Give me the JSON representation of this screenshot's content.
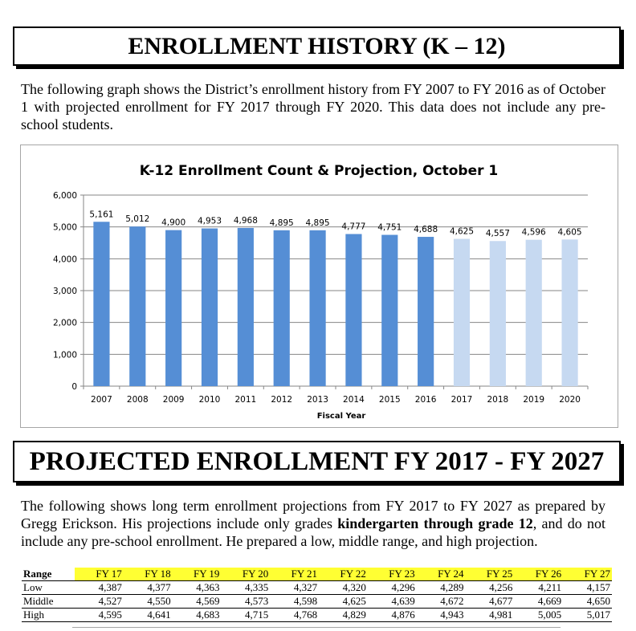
{
  "header1": "ENROLLMENT  HISTORY (K – 12)",
  "intro": "The following graph shows the District’s enrollment history from FY 2007 to FY 2016 as of October 1 with projected enrollment for FY 2017 through FY 2020.  This data does not include any pre-school students.",
  "chart_data": {
    "type": "bar",
    "title": "K-12 Enrollment Count & Projection, October 1",
    "xlabel": "Fiscal Year",
    "ylabel": "",
    "ylim": [
      0,
      6000
    ],
    "yticks": [
      "0",
      "1,000",
      "2,000",
      "3,000",
      "4,000",
      "5,000",
      "6,000"
    ],
    "categories": [
      "2007",
      "2008",
      "2009",
      "2010",
      "2011",
      "2012",
      "2013",
      "2014",
      "2015",
      "2016",
      "2017",
      "2018",
      "2019",
      "2020"
    ],
    "values": [
      5161,
      5012,
      4900,
      4953,
      4968,
      4895,
      4895,
      4777,
      4751,
      4688,
      4625,
      4557,
      4596,
      4605
    ],
    "labels": [
      "5,161",
      "5,012",
      "4,900",
      "4,953",
      "4,968",
      "4,895",
      "4,895",
      "4,777",
      "4,751",
      "4,688",
      "4,625",
      "4,557",
      "4,596",
      "4,605"
    ],
    "projected_from_index": 10,
    "grid": true,
    "colors": {
      "actual": "#558ed5",
      "projected": "#c6d9f1"
    }
  },
  "header2": "PROJECTED  ENROLLMENT  FY 2017 - FY 2027",
  "para2": {
    "before": "The following shows long term enrollment projections from FY 2017 to FY 2027 as prepared by Gregg Erickson.  His projections include only grades ",
    "bold": "kindergarten through grade 12",
    "after": ", and do not include any pre-school enrollment.  He prepared a low, middle range, and high projection."
  },
  "table": {
    "header": [
      "Range",
      "FY 17",
      "FY 18",
      "FY 19",
      "FY 20",
      "FY 21",
      "FY 22",
      "FY 23",
      "FY 24",
      "FY 25",
      "FY 26",
      "FY 27"
    ],
    "rows": [
      [
        "Low",
        "4,387",
        "4,377",
        "4,363",
        "4,335",
        "4,327",
        "4,320",
        "4,296",
        "4,289",
        "4,256",
        "4,211",
        "4,157"
      ],
      [
        "Middle",
        "4,527",
        "4,550",
        "4,569",
        "4,573",
        "4,598",
        "4,625",
        "4,639",
        "4,672",
        "4,677",
        "4,669",
        "4,650"
      ],
      [
        "High",
        "4,595",
        "4,641",
        "4,683",
        "4,715",
        "4,768",
        "4,829",
        "4,876",
        "4,943",
        "4,981",
        "5,005",
        "5,017"
      ]
    ],
    "highlight_color": "#ffff33"
  }
}
